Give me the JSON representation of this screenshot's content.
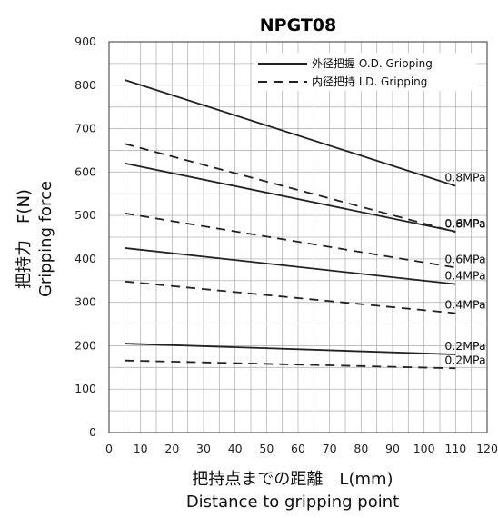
{
  "chart_data": {
    "type": "line",
    "title": "NPGT08",
    "xlabel": [
      "把持点までの距離　L(mm)",
      "Distance to gripping point"
    ],
    "ylabel": [
      "把持力　F(N)",
      "Gripping force"
    ],
    "xlim": [
      0,
      120
    ],
    "ylim": [
      0,
      900
    ],
    "x_ticks": [
      0,
      10,
      20,
      30,
      40,
      50,
      60,
      70,
      80,
      90,
      100,
      110,
      120
    ],
    "y_ticks": [
      0,
      100,
      200,
      300,
      400,
      500,
      600,
      700,
      800,
      900
    ],
    "grid": true,
    "legend": {
      "position": "top-right",
      "entries": [
        {
          "label": "外径把握 O.D. Gripping",
          "style": "solid"
        },
        {
          "label": "内径把持 I.D. Gripping",
          "style": "dashed"
        }
      ]
    },
    "series": [
      {
        "group": "外径把握 O.D. Gripping",
        "style": "solid",
        "label": "0.8MPa",
        "x": [
          5,
          110
        ],
        "y": [
          812,
          568
        ]
      },
      {
        "group": "外径把握 O.D. Gripping",
        "style": "solid",
        "label": "0.6MPa",
        "x": [
          5,
          110
        ],
        "y": [
          620,
          463
        ]
      },
      {
        "group": "外径把握 O.D. Gripping",
        "style": "solid",
        "label": "0.4MPa",
        "x": [
          5,
          110
        ],
        "y": [
          425,
          342
        ]
      },
      {
        "group": "外径把握 O.D. Gripping",
        "style": "solid",
        "label": "0.2MPa",
        "x": [
          5,
          110
        ],
        "y": [
          205,
          180
        ]
      },
      {
        "group": "内径把持 I.D. Gripping",
        "style": "dashed",
        "label": "0.8MPa",
        "x": [
          5,
          110
        ],
        "y": [
          665,
          462
        ]
      },
      {
        "group": "内径把持 I.D. Gripping",
        "style": "dashed",
        "label": "0.6MPa",
        "x": [
          5,
          110
        ],
        "y": [
          505,
          380
        ]
      },
      {
        "group": "内径把持 I.D. Gripping",
        "style": "dashed",
        "label": "0.4MPa",
        "x": [
          5,
          110
        ],
        "y": [
          348,
          275
        ]
      },
      {
        "group": "内径把持 I.D. Gripping",
        "style": "dashed",
        "label": "0.2MPa",
        "x": [
          5,
          110
        ],
        "y": [
          166,
          148
        ]
      }
    ]
  },
  "colors": {
    "line": "#222222",
    "grid": "#b5b5b5",
    "background": "#ffffff"
  }
}
